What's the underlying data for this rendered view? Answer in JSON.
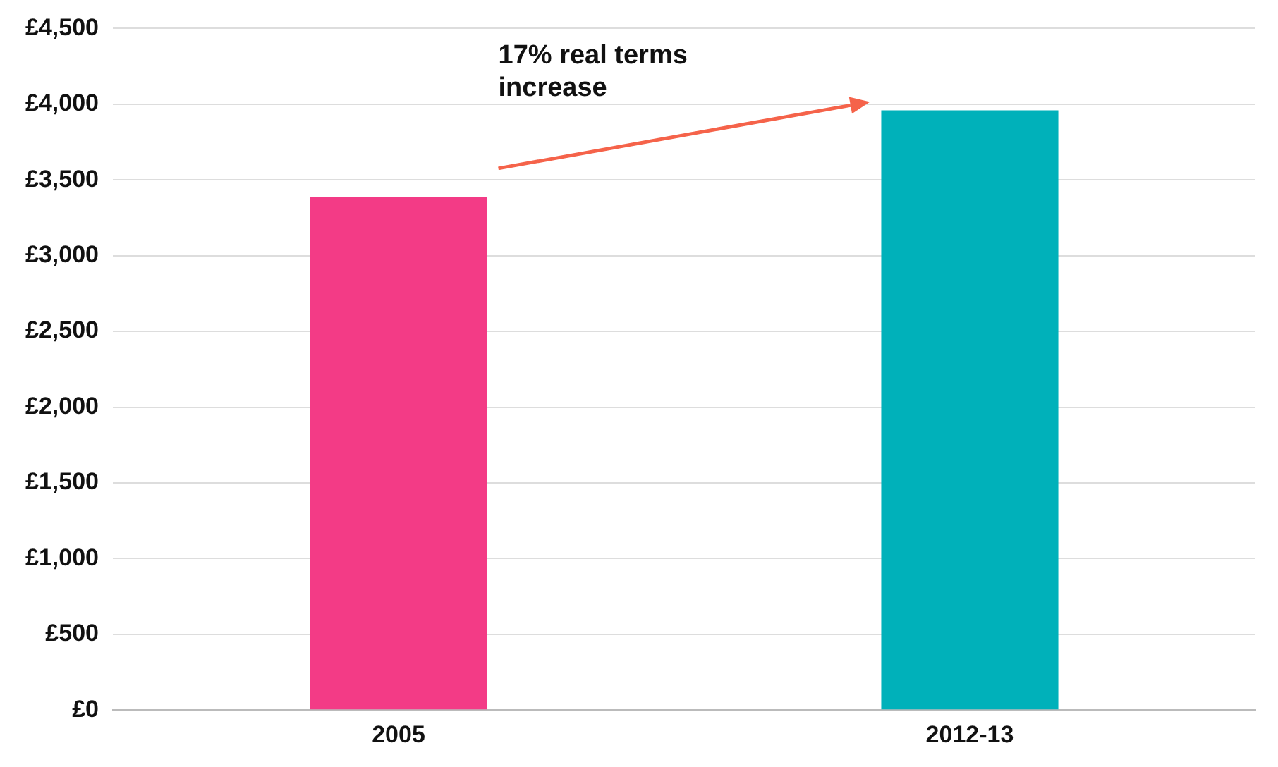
{
  "chart_data": {
    "type": "bar",
    "categories": [
      "2005",
      "2012-13"
    ],
    "values": [
      3390,
      3960
    ],
    "colors": [
      "#f33b86",
      "#00b1ba"
    ],
    "ylim": [
      0,
      4500
    ],
    "yticks": [
      {
        "value": 0,
        "label": "£0"
      },
      {
        "value": 500,
        "label": "£500"
      },
      {
        "value": 1000,
        "label": "£1,000"
      },
      {
        "value": 1500,
        "label": "£1,500"
      },
      {
        "value": 2000,
        "label": "£2,000"
      },
      {
        "value": 2500,
        "label": "£2,500"
      },
      {
        "value": 3000,
        "label": "£3,000"
      },
      {
        "value": 3500,
        "label": "£3,500"
      },
      {
        "value": 4000,
        "label": "£4,000"
      },
      {
        "value": 4500,
        "label": "£4,500"
      }
    ],
    "grid": "y",
    "legend": false,
    "annotations": [
      "17% real terms increase"
    ]
  }
}
